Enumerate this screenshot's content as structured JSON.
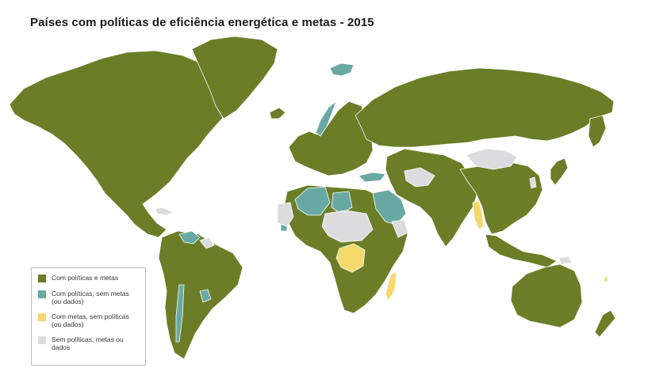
{
  "title": "Países com políticas de eficiência energética e metas - 2015",
  "colors": {
    "policies_and_targets": "#6b7d27",
    "policies_no_targets": "#69a9a4",
    "targets_no_policies": "#f4d86c",
    "none": "#dcdcdf",
    "border": "#ffffff"
  },
  "legend": {
    "items": [
      {
        "label": "Com políticas e metas",
        "color": "#6b7d27"
      },
      {
        "label": "Com políticas, sem metas (ou dados)",
        "color": "#69a9a4"
      },
      {
        "label": "Com metas, sem políticas (ou dados)",
        "color": "#f4d86c"
      },
      {
        "label": "Sem políticas, metas ou dados",
        "color": "#dcdcdf"
      }
    ]
  }
}
